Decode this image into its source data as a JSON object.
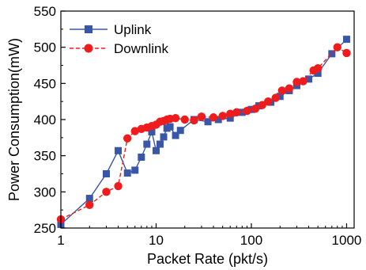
{
  "chart_data": {
    "type": "line",
    "xlabel": "Packet Rate (pkt/s)",
    "ylabel": "Power Consumption(mW)",
    "xscale": "log",
    "xlim": [
      1,
      1200
    ],
    "ylim": [
      250,
      550
    ],
    "x_ticks": [
      1,
      10,
      100,
      1000
    ],
    "x_tick_labels": [
      "1",
      "10",
      "100",
      "1000"
    ],
    "y_ticks": [
      250,
      300,
      350,
      400,
      450,
      500,
      550
    ],
    "y_tick_labels": [
      "250",
      "300",
      "350",
      "400",
      "450",
      "500",
      "550"
    ],
    "grid": false,
    "legend_position": "top-left",
    "series": [
      {
        "name": "Uplink",
        "color": "#3a56a8",
        "marker": "square",
        "line_style": "solid",
        "x": [
          1,
          2,
          3,
          4,
          5,
          6,
          7,
          8,
          9,
          10,
          11,
          12,
          13,
          14,
          16,
          18,
          25,
          35,
          45,
          60,
          80,
          100,
          120,
          160,
          200,
          250,
          300,
          400,
          500,
          700,
          1000
        ],
        "y": [
          255,
          291,
          325,
          357,
          326,
          330,
          348,
          366,
          383,
          357,
          366,
          376,
          388,
          390,
          378,
          385,
          400,
          397,
          400,
          402,
          410,
          414,
          419,
          424,
          432,
          440,
          447,
          456,
          464,
          491,
          511
        ]
      },
      {
        "name": "Downlink",
        "color": "#ee1c1c",
        "marker": "circle",
        "line_style": "dashed",
        "x": [
          1,
          2,
          3,
          4,
          5,
          6,
          7,
          8,
          9,
          10,
          11,
          12,
          13,
          14,
          16,
          20,
          25,
          30,
          40,
          50,
          60,
          70,
          90,
          110,
          130,
          150,
          180,
          210,
          250,
          300,
          350,
          450,
          500,
          800,
          1000
        ],
        "y": [
          262,
          282,
          300,
          308,
          374,
          384,
          387,
          389,
          391,
          393,
          397,
          398,
          400,
          401,
          402,
          400,
          399,
          404,
          403,
          405,
          408,
          410,
          412,
          415,
          420,
          425,
          430,
          440,
          443,
          452,
          453,
          468,
          471,
          500,
          492
        ]
      }
    ]
  }
}
